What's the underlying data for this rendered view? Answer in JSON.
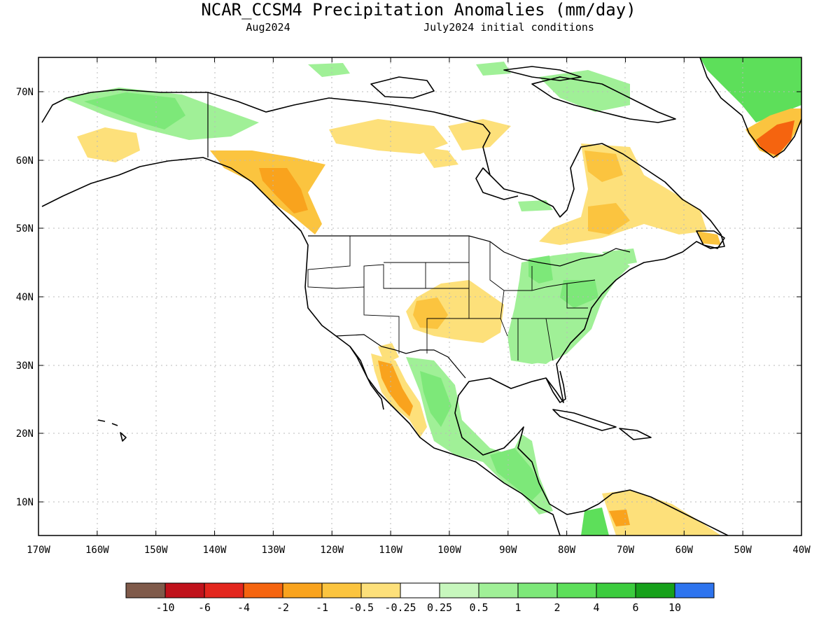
{
  "title": "NCAR_CCSM4 Precipitation Anomalies (mm/day)",
  "subtitle_left": "Aug2024",
  "subtitle_right": "July2024 initial conditions",
  "lat_labels": [
    "70N",
    "60N",
    "50N",
    "40N",
    "30N",
    "20N",
    "10N"
  ],
  "lon_labels": [
    "170W",
    "160W",
    "150W",
    "140W",
    "130W",
    "120W",
    "110W",
    "100W",
    "90W",
    "80W",
    "70W",
    "60W",
    "50W",
    "40W"
  ],
  "colorbar": {
    "colors": [
      "#7f5a4a",
      "#c0121b",
      "#e3261d",
      "#f5640f",
      "#f9a31d",
      "#fbc43f",
      "#fde07a",
      "#ffffff",
      "#c7f7bd",
      "#a0f097",
      "#7de879",
      "#5ddf5a",
      "#3ccc3e",
      "#17a11b",
      "#2e74ee"
    ],
    "labels": [
      "-10",
      "-6",
      "-4",
      "-2",
      "-1",
      "-0.5",
      "-0.25",
      "0.25",
      "0.5",
      "1",
      "2",
      "4",
      "6",
      "10"
    ]
  }
}
